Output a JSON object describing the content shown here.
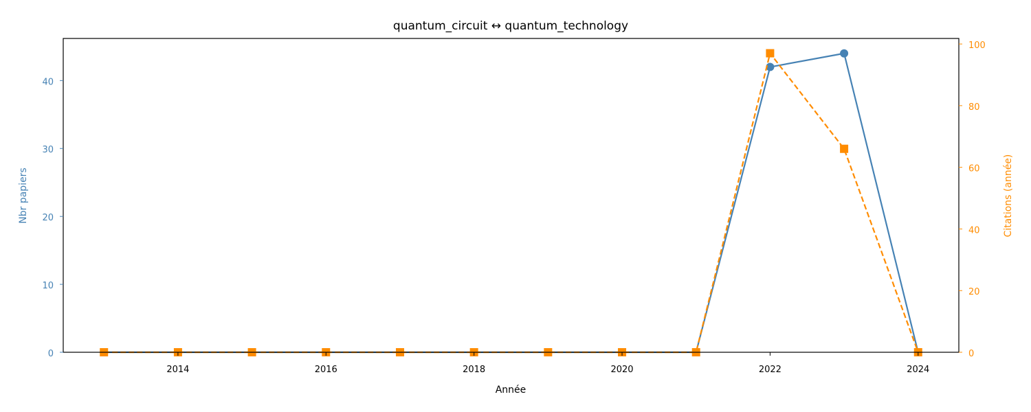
{
  "chart_data": {
    "type": "line",
    "title": "quantum_circuit  ↔  quantum_technology",
    "xlabel": "Année",
    "ylabel_left": "Nbr papiers",
    "ylabel_right": "Citations (année)",
    "x": [
      2013,
      2014,
      2015,
      2016,
      2017,
      2018,
      2019,
      2020,
      2021,
      2022,
      2023,
      2024
    ],
    "xlim": [
      2012.45,
      2024.55
    ],
    "x_ticks": [
      2014,
      2016,
      2018,
      2020,
      2022,
      2024
    ],
    "ylim_left": [
      0,
      46.2
    ],
    "y_ticks_left": [
      0,
      10,
      20,
      30,
      40
    ],
    "ylim_right": [
      0,
      101.8
    ],
    "y_ticks_right": [
      0,
      20,
      40,
      60,
      80,
      100
    ],
    "grid": false,
    "series": [
      {
        "axis": "left",
        "color": "#4682b4",
        "marker": "circle",
        "linestyle": "solid",
        "values": [
          0,
          0,
          0,
          0,
          0,
          0,
          0,
          0,
          0,
          42,
          44,
          0
        ]
      },
      {
        "axis": "right",
        "color": "#ff8c00",
        "marker": "square",
        "linestyle": "dashed",
        "values": [
          0,
          0,
          0,
          0,
          0,
          0,
          0,
          0,
          0,
          97,
          66,
          0
        ]
      }
    ]
  }
}
